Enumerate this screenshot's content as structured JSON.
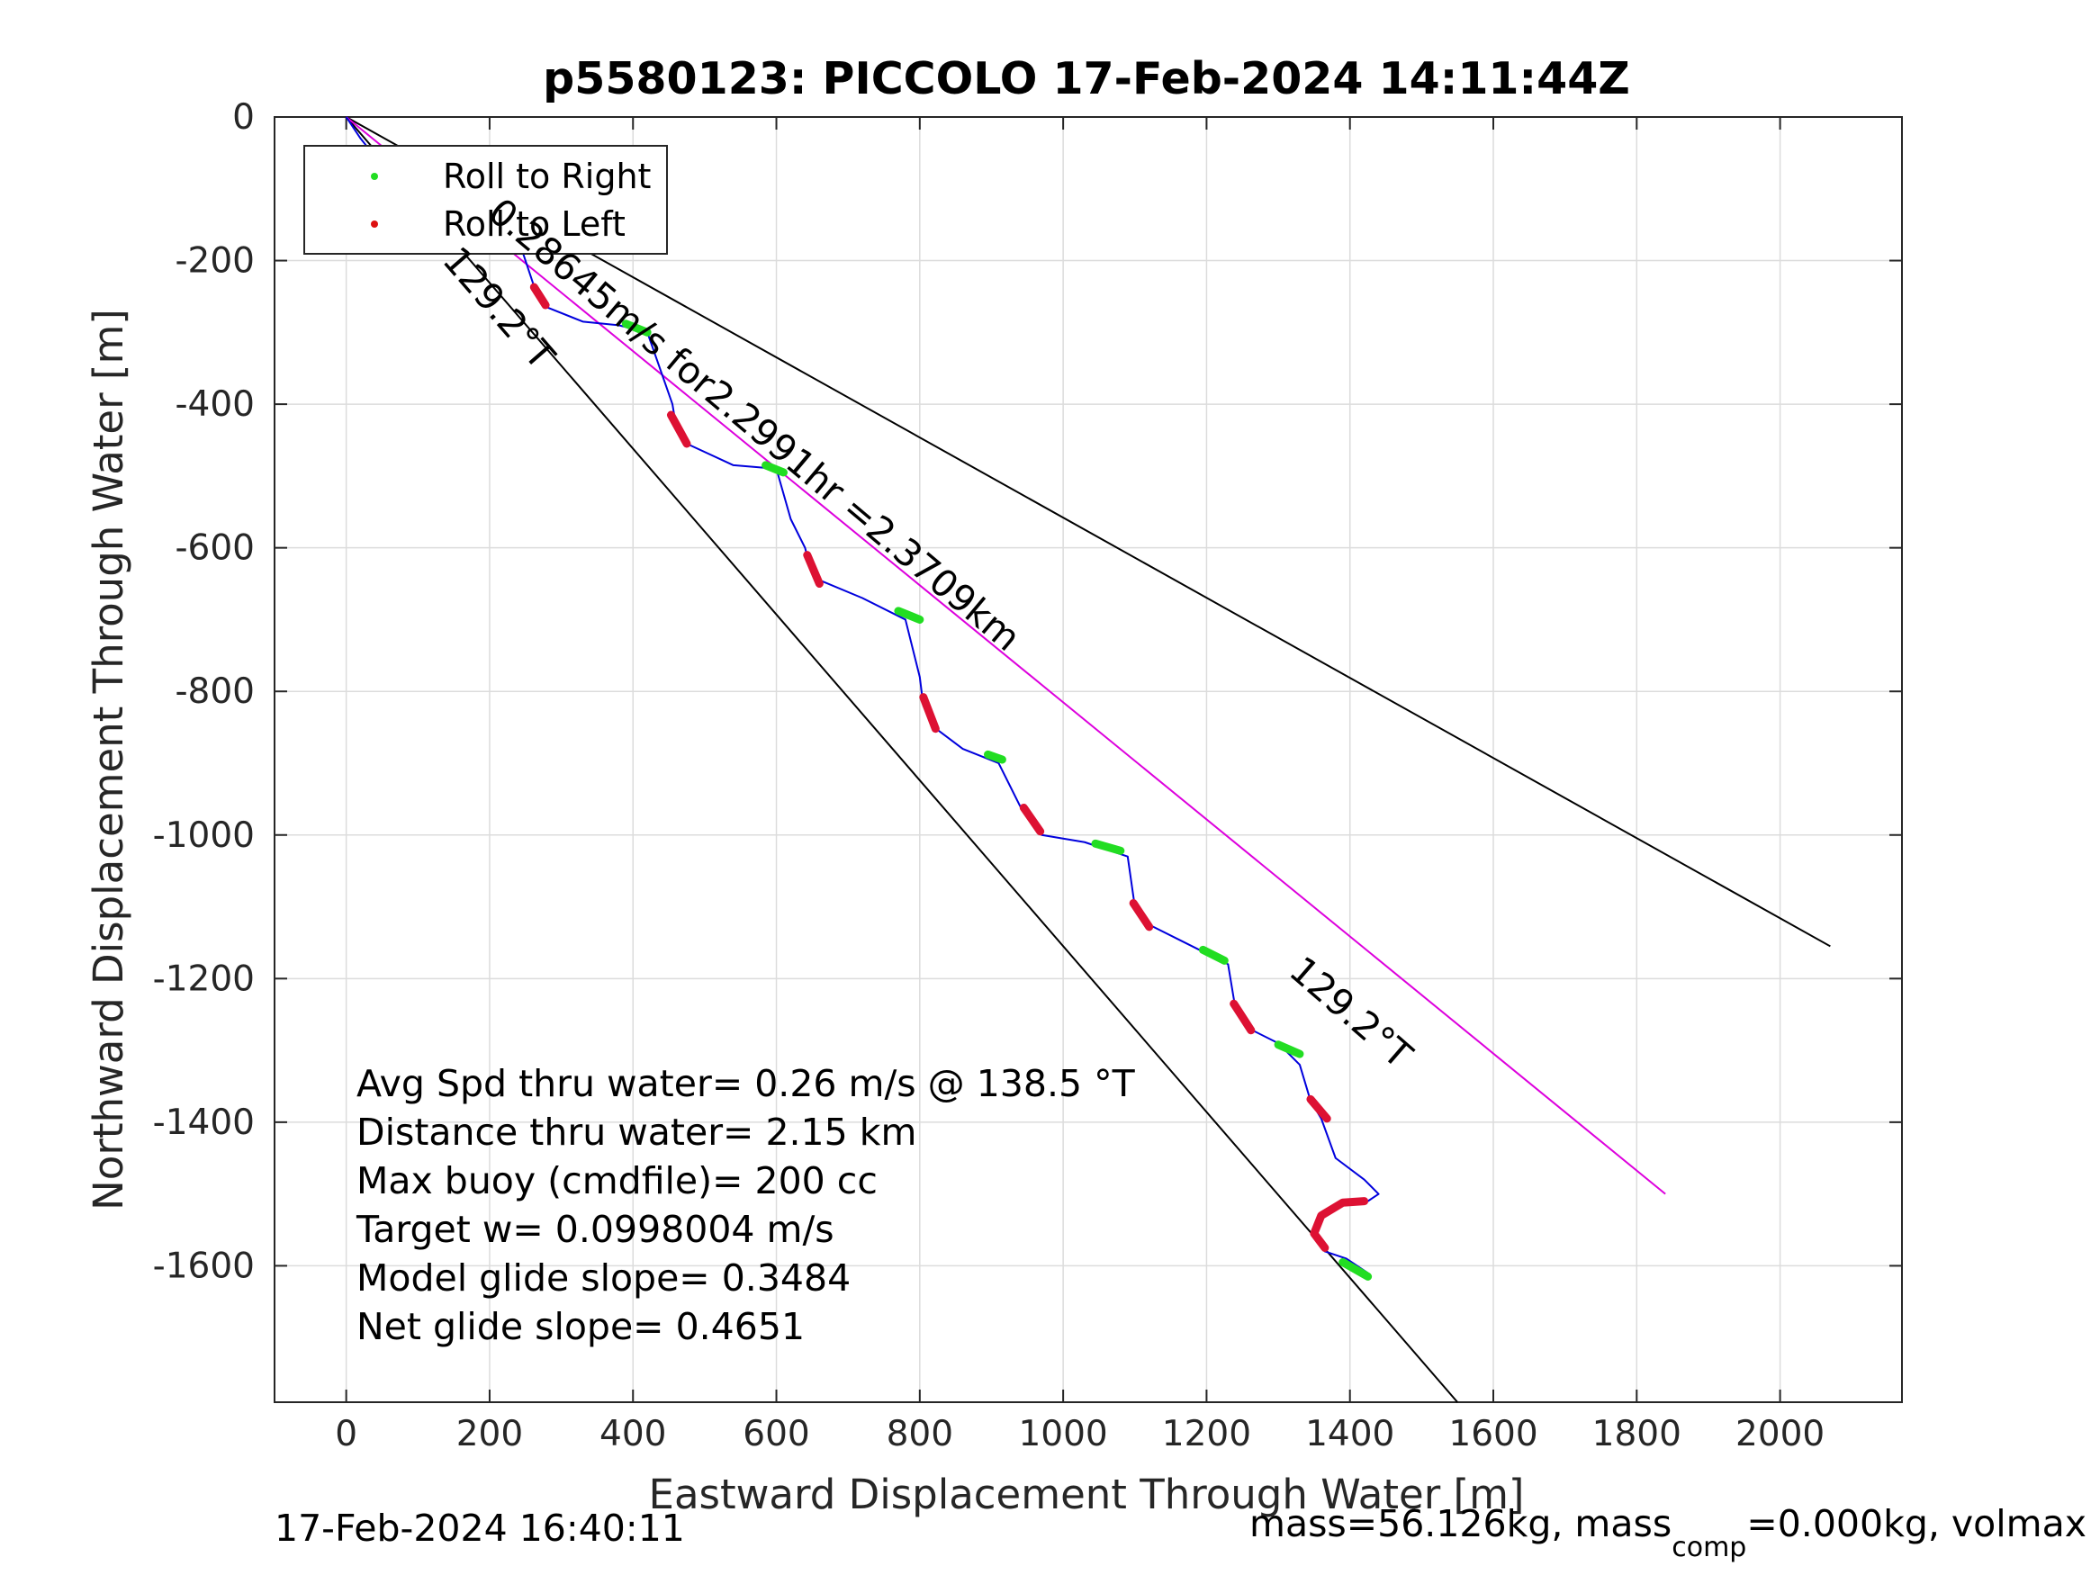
{
  "chart_data": {
    "type": "line",
    "title": "p5580123: PICCOLO 17-Feb-2024 14:11:44Z",
    "xlabel": "Eastward Displacement Through Water [m]",
    "ylabel": "Northward Displacement Through Water [m]",
    "xlim": [
      -100,
      2170
    ],
    "ylim": [
      -1790,
      0
    ],
    "xticks": [
      0,
      200,
      400,
      600,
      800,
      1000,
      1200,
      1400,
      1600,
      1800,
      2000
    ],
    "yticks": [
      0,
      -200,
      -400,
      -600,
      -800,
      -1000,
      -1200,
      -1400,
      -1600
    ],
    "grid": true,
    "legend": {
      "position": "top-left",
      "entries": [
        {
          "label": "Roll to Right",
          "color": "#22dd22"
        },
        {
          "label": "Roll to Left",
          "color": "#dd1111"
        }
      ]
    },
    "colors": {
      "track": "#0000dd",
      "magenta": "#dd00dd",
      "right": "#22dd22",
      "left": "#dd1133",
      "black": "#000000"
    },
    "lines": [
      {
        "color": "#000000",
        "x": [
          0,
          1550
        ],
        "y": [
          0,
          -1790
        ]
      },
      {
        "color": "#000000",
        "x": [
          0,
          2070
        ],
        "y": [
          0,
          -1155
        ]
      },
      {
        "color": "#dd00dd",
        "x": [
          0,
          1840
        ],
        "y": [
          0,
          -1500
        ]
      }
    ],
    "series": [
      {
        "color": "#0000dd",
        "x": [
          0,
          20,
          40,
          60,
          80,
          140,
          210,
          240,
          260,
          265,
          280,
          330,
          380,
          420,
          455,
          460,
          475,
          540,
          600,
          620,
          640,
          645,
          660,
          720,
          780,
          800,
          805,
          820,
          860,
          910,
          940,
          950,
          970,
          1030,
          1090,
          1100,
          1120,
          1170,
          1230,
          1240,
          1260,
          1300,
          1330,
          1345,
          1360,
          1380,
          1420,
          1440,
          1425,
          1400,
          1360,
          1350,
          1365,
          1395,
          1425
        ],
        "y": [
          0,
          -30,
          -55,
          -80,
          -100,
          -115,
          -120,
          -170,
          -230,
          -245,
          -265,
          -285,
          -290,
          -300,
          -400,
          -430,
          -455,
          -485,
          -490,
          -560,
          -600,
          -620,
          -645,
          -670,
          -700,
          -780,
          -820,
          -850,
          -880,
          -900,
          -960,
          -970,
          -1000,
          -1010,
          -1030,
          -1100,
          -1125,
          -1150,
          -1180,
          -1240,
          -1270,
          -1290,
          -1320,
          -1370,
          -1395,
          -1450,
          -1480,
          -1500,
          -1510,
          -1510,
          -1530,
          -1560,
          -1580,
          -1590,
          -1610
        ]
      }
    ],
    "roll_right_segments": [
      {
        "x": [
          190,
          225
        ],
        "y": [
          -112,
          -128
        ]
      },
      {
        "x": [
          390,
          420
        ],
        "y": [
          -288,
          -300
        ]
      },
      {
        "x": [
          585,
          610
        ],
        "y": [
          -485,
          -495
        ]
      },
      {
        "x": [
          770,
          800
        ],
        "y": [
          -688,
          -700
        ]
      },
      {
        "x": [
          895,
          915
        ],
        "y": [
          -888,
          -895
        ]
      },
      {
        "x": [
          1045,
          1080
        ],
        "y": [
          -1012,
          -1022
        ]
      },
      {
        "x": [
          1195,
          1225
        ],
        "y": [
          -1160,
          -1175
        ]
      },
      {
        "x": [
          1300,
          1330
        ],
        "y": [
          -1292,
          -1305
        ]
      },
      {
        "x": [
          1390,
          1425
        ],
        "y": [
          -1595,
          -1615
        ]
      }
    ],
    "roll_left_segments": [
      {
        "x": [
          70,
          80
        ],
        "y": [
          -88,
          -100
        ]
      },
      {
        "x": [
          262,
          278
        ],
        "y": [
          -237,
          -262
        ]
      },
      {
        "x": [
          453,
          475
        ],
        "y": [
          -415,
          -455
        ]
      },
      {
        "x": [
          643,
          660
        ],
        "y": [
          -610,
          -650
        ]
      },
      {
        "x": [
          805,
          822
        ],
        "y": [
          -808,
          -852
        ]
      },
      {
        "x": [
          945,
          968
        ],
        "y": [
          -962,
          -995
        ]
      },
      {
        "x": [
          1098,
          1120
        ],
        "y": [
          -1095,
          -1128
        ]
      },
      {
        "x": [
          1238,
          1262
        ],
        "y": [
          -1235,
          -1272
        ]
      },
      {
        "x": [
          1345,
          1368
        ],
        "y": [
          -1368,
          -1395
        ]
      },
      {
        "x": [
          1420,
          1390,
          1360,
          1350,
          1365
        ],
        "y": [
          -1510,
          -1512,
          -1530,
          -1555,
          -1575
        ]
      }
    ],
    "annotations": {
      "heading_1": "129.2°T",
      "heading_2": "129.2°T",
      "current": "0.28645m/s for2.2991hr =2.3709km"
    },
    "notes": [
      "Avg Spd thru water=  0.26 m/s @ 138.5 °T",
      "Distance thru water=  2.15 km",
      "Max buoy (cmdfile)= 200 cc",
      "Target w= 0.0998004 m/s",
      "Model glide slope= 0.3484",
      "Net glide slope= 0.4651"
    ]
  },
  "footer": {
    "timestamp": "17-Feb-2024 16:40:11",
    "mass_text": "mass=56.126kg, mass",
    "mass_sub": "comp",
    "mass_rest": "=0.000kg, volmax"
  }
}
